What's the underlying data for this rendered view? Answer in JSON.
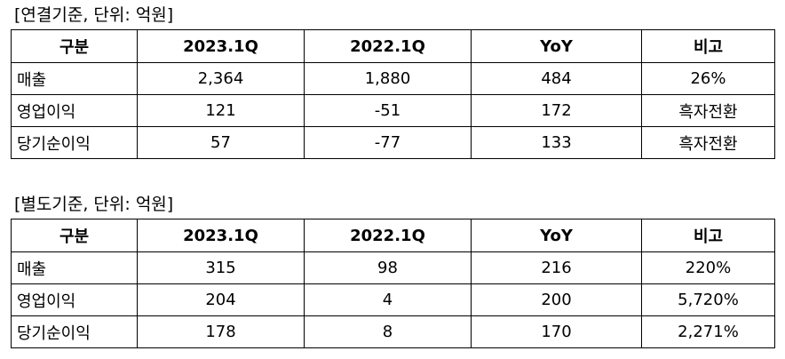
{
  "tables": [
    {
      "caption": "[연결기준, 단위: 억원]",
      "headers": [
        "구분",
        "2023.1Q",
        "2022.1Q",
        "YoY",
        "비고"
      ],
      "rows": [
        [
          "매출",
          "2,364",
          "1,880",
          "484",
          "26%"
        ],
        [
          "영업이익",
          "121",
          "-51",
          "172",
          "흑자전환"
        ],
        [
          "당기순이익",
          "57",
          "-77",
          "133",
          "흑자전환"
        ]
      ]
    },
    {
      "caption": "[별도기준, 단위: 억원]",
      "headers": [
        "구분",
        "2023.1Q",
        "2022.1Q",
        "YoY",
        "비고"
      ],
      "rows": [
        [
          "매출",
          "315",
          "98",
          "216",
          "220%"
        ],
        [
          "영업이익",
          "204",
          "4",
          "200",
          "5,720%"
        ],
        [
          "당기순이익",
          "178",
          "8",
          "170",
          "2,271%"
        ]
      ]
    }
  ]
}
